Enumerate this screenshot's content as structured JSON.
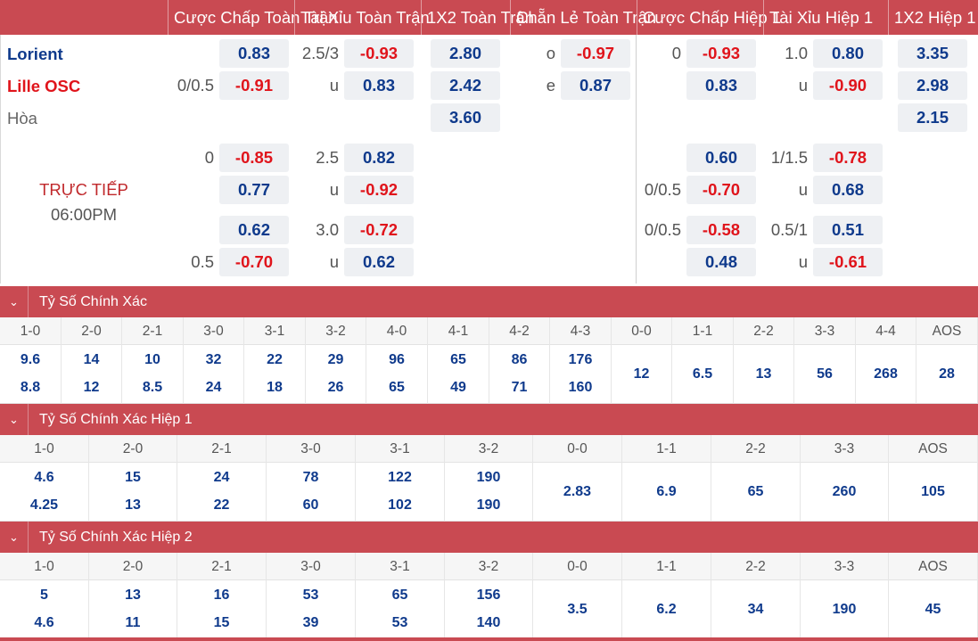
{
  "colors": {
    "header_bg": "#c94a52",
    "positive": "#0f3a8c",
    "negative": "#e0141b",
    "odds_bg": "#eef0f3"
  },
  "header": {
    "columns": [
      "Cược Chấp Toàn Trận",
      "Tài Xỉu Toàn Trận",
      "1X2 Toàn Trận",
      "Chẵn Lẻ Toàn Trận",
      "Cược Chấp Hiệp 1",
      "Tài Xỉu Hiệp 1",
      "1X2 Hiệp 1"
    ]
  },
  "match": {
    "home": "Lorient",
    "away": "Lille OSC",
    "draw": "Hòa",
    "status": "TRỰC TIẾP",
    "time": "06:00PM"
  },
  "odds": {
    "ft_hdp": [
      {
        "home_line": "",
        "home": "0.83",
        "away_line": "0/0.5",
        "away": "-0.91"
      },
      {
        "home_line": "0",
        "home": "-0.85",
        "away_line": "",
        "away": "0.77"
      },
      {
        "home_line": "",
        "home": "0.62",
        "away_line": "0.5",
        "away": "-0.70"
      }
    ],
    "ft_ou": [
      {
        "line": "2.5/3",
        "over": "-0.93",
        "u_label": "u",
        "under": "0.83"
      },
      {
        "line": "2.5",
        "over": "0.82",
        "u_label": "u",
        "under": "-0.92"
      },
      {
        "line": "3.0",
        "over": "-0.72",
        "u_label": "u",
        "under": "0.62"
      }
    ],
    "ft_1x2": {
      "home": "2.80",
      "away": "2.42",
      "draw": "3.60"
    },
    "ft_oe": {
      "o_label": "o",
      "odd": "-0.97",
      "e_label": "e",
      "even": "0.87"
    },
    "h1_hdp": [
      {
        "home_line": "0",
        "home": "-0.93",
        "away_line": "",
        "away": "0.83"
      },
      {
        "home_line": "",
        "home": "0.60",
        "away_line": "0/0.5",
        "away": "-0.70"
      },
      {
        "home_line": "0/0.5",
        "home": "-0.58",
        "away_line": "",
        "away": "0.48"
      }
    ],
    "h1_ou": [
      {
        "line": "1.0",
        "over": "0.80",
        "u_label": "u",
        "under": "-0.90"
      },
      {
        "line": "1/1.5",
        "over": "-0.78",
        "u_label": "u",
        "under": "0.68"
      },
      {
        "line": "0.5/1",
        "over": "0.51",
        "u_label": "u",
        "under": "-0.61"
      }
    ],
    "h1_1x2": {
      "home": "3.35",
      "away": "2.98",
      "draw": "2.15"
    }
  },
  "correct_score": {
    "title": "Tỷ Số Chính Xác",
    "labels": [
      "1-0",
      "2-0",
      "2-1",
      "3-0",
      "3-1",
      "3-2",
      "4-0",
      "4-1",
      "4-2",
      "4-3",
      "0-0",
      "1-1",
      "2-2",
      "3-3",
      "4-4",
      "AOS"
    ],
    "home": [
      "9.6",
      "14",
      "10",
      "32",
      "22",
      "29",
      "96",
      "65",
      "86",
      "176",
      "12",
      "6.5",
      "13",
      "56",
      "268",
      "28"
    ],
    "away": [
      "8.8",
      "12",
      "8.5",
      "24",
      "18",
      "26",
      "65",
      "49",
      "71",
      "160",
      "",
      "",
      "",
      "",
      "",
      ""
    ]
  },
  "correct_score_h1": {
    "title": "Tỷ Số Chính Xác Hiệp 1",
    "labels": [
      "1-0",
      "2-0",
      "2-1",
      "3-0",
      "3-1",
      "3-2",
      "0-0",
      "1-1",
      "2-2",
      "3-3",
      "AOS"
    ],
    "home": [
      "4.6",
      "15",
      "24",
      "78",
      "122",
      "190",
      "2.83",
      "6.9",
      "65",
      "260",
      "105"
    ],
    "away": [
      "4.25",
      "13",
      "22",
      "60",
      "102",
      "190",
      "",
      "",
      "",
      "",
      ""
    ]
  },
  "correct_score_h2": {
    "title": "Tỷ Số Chính Xác Hiệp 2",
    "labels": [
      "1-0",
      "2-0",
      "2-1",
      "3-0",
      "3-1",
      "3-2",
      "0-0",
      "1-1",
      "2-2",
      "3-3",
      "AOS"
    ],
    "home": [
      "5",
      "13",
      "16",
      "53",
      "65",
      "156",
      "3.5",
      "6.2",
      "34",
      "190",
      "45"
    ],
    "away": [
      "4.6",
      "11",
      "15",
      "39",
      "53",
      "140",
      "",
      "",
      "",
      "",
      ""
    ]
  }
}
